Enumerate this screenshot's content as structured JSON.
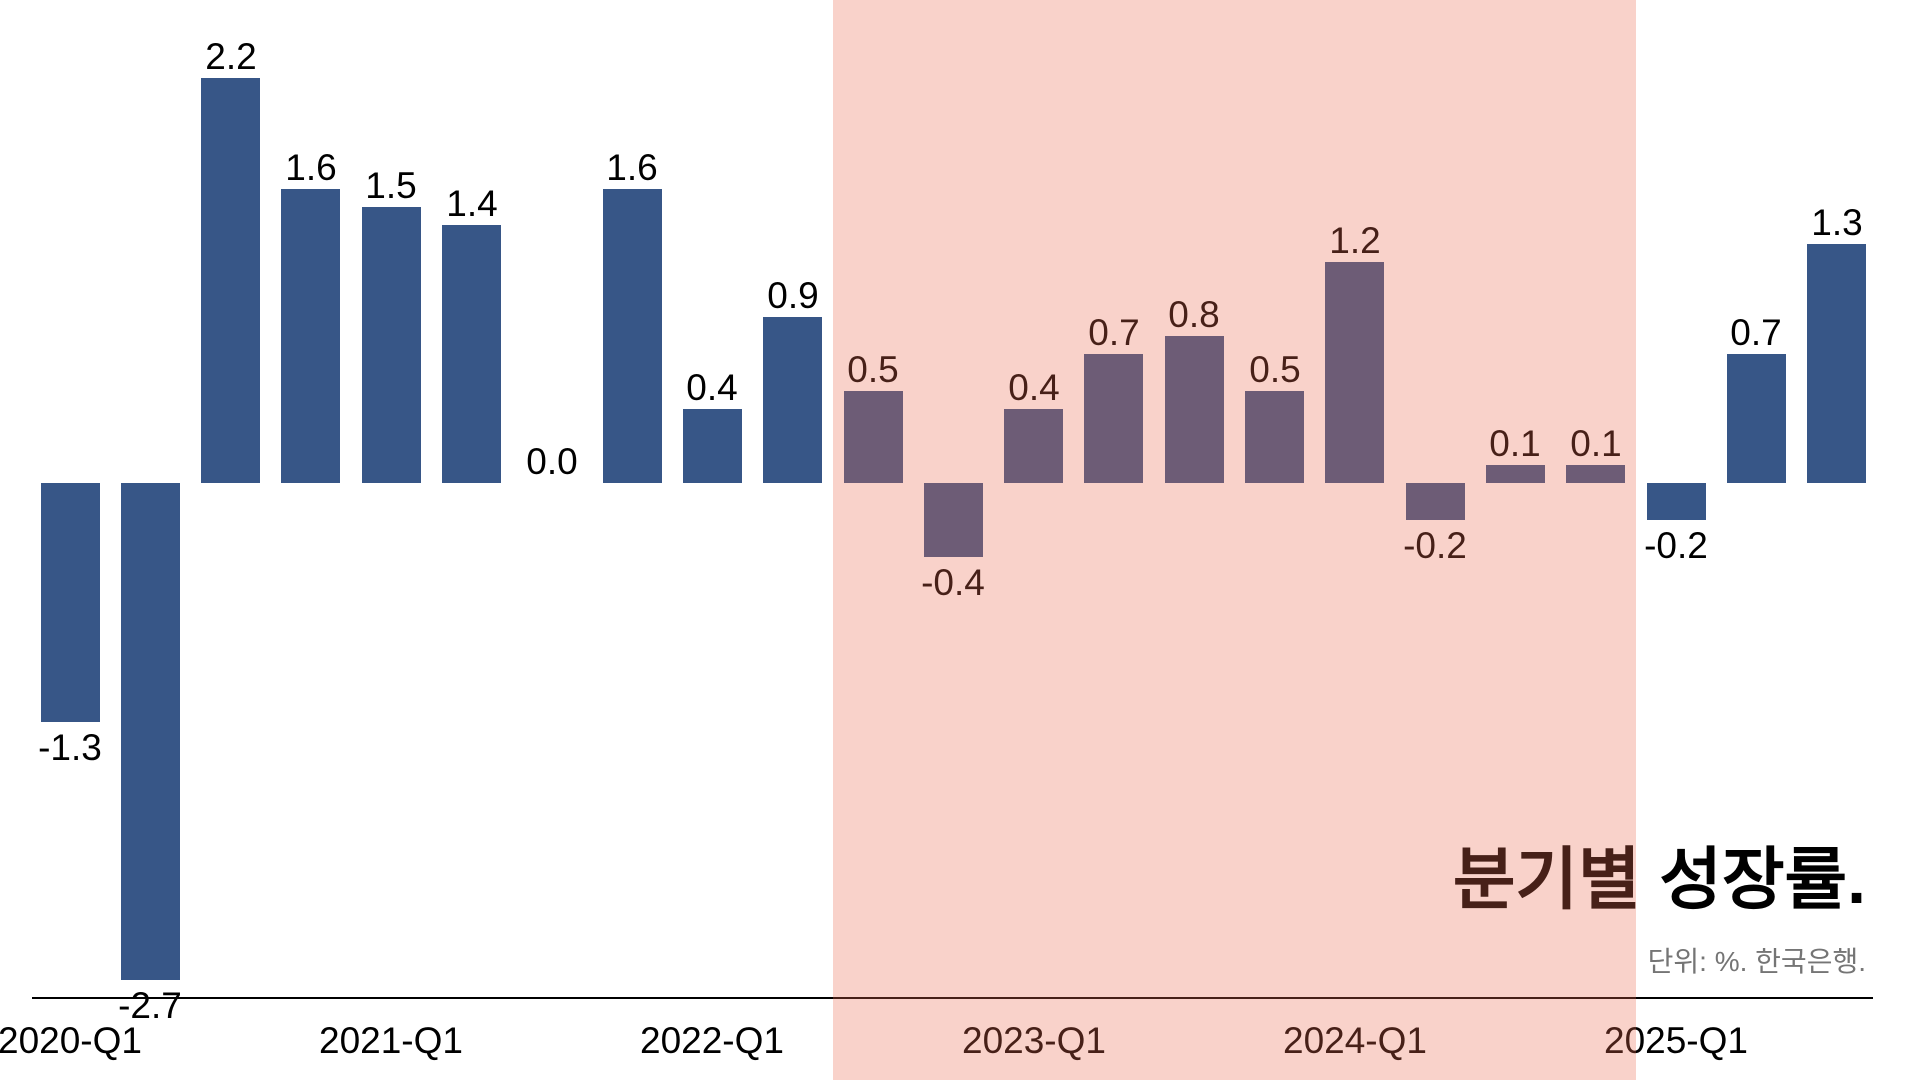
{
  "chart_data": {
    "type": "bar",
    "title": "분기별 성장률.",
    "subtitle": "단위: %. 한국은행.",
    "categories": [
      "2020-Q1",
      "2020-Q2",
      "2020-Q3",
      "2020-Q4",
      "2021-Q1",
      "2021-Q2",
      "2021-Q3",
      "2021-Q4",
      "2022-Q1",
      "2022-Q2",
      "2022-Q3",
      "2022-Q4",
      "2023-Q1",
      "2023-Q2",
      "2023-Q3",
      "2023-Q4",
      "2024-Q1",
      "2024-Q2",
      "2024-Q3",
      "2024-Q4",
      "2025-Q1",
      "2025-Q2",
      "2025-Q3"
    ],
    "values": [
      -1.3,
      -2.7,
      2.2,
      1.6,
      1.5,
      1.4,
      0.0,
      1.6,
      0.4,
      0.9,
      0.5,
      -0.4,
      0.4,
      0.7,
      0.8,
      0.5,
      1.2,
      -0.2,
      0.1,
      0.1,
      -0.2,
      0.7,
      1.3
    ],
    "value_label_decimals": 1,
    "x_tick_labels": [
      "2020-Q1",
      "2021-Q1",
      "2022-Q1",
      "2023-Q1",
      "2024-Q1",
      "2025-Q1"
    ],
    "highlight_span": {
      "start_category": "2022-Q3",
      "end_category": "2024-Q4",
      "overlay_color": "rgba(235,106,79,0.30)",
      "appearance_over_white": "#f9d3cb",
      "appearance_over_bar": "#6c5c76"
    },
    "bar_color": "#375687",
    "label_color": "#000000",
    "subtitle_color": "#757575",
    "axis_line_color": "#000000",
    "grid": false,
    "legend": false,
    "ylabel": "",
    "xlabel": "",
    "unit": "%"
  }
}
